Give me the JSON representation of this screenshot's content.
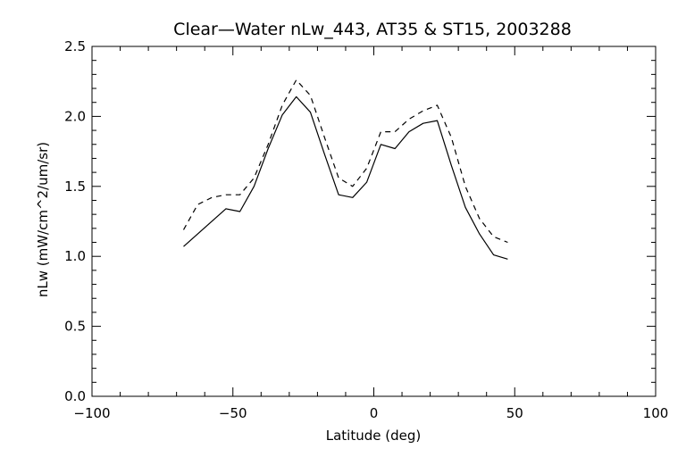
{
  "chart_data": {
    "type": "line",
    "title": "Clear—Water nLw_443, AT35 & ST15, 2003288",
    "xlabel": "Latitude (deg)",
    "ylabel": "nLw (mW/cm^2/um/sr)",
    "xlim": [
      -100,
      100
    ],
    "ylim": [
      0.0,
      2.5
    ],
    "x_ticks": [
      "−100",
      "−50",
      "0",
      "50",
      "100"
    ],
    "x_tick_values": [
      -100,
      -50,
      0,
      50,
      100
    ],
    "y_ticks": [
      "0.0",
      "0.5",
      "1.0",
      "1.5",
      "2.0",
      "2.5"
    ],
    "y_tick_values": [
      0.0,
      0.5,
      1.0,
      1.5,
      2.0,
      2.5
    ],
    "grid": false,
    "series": [
      {
        "line_style": "solid",
        "color": "#000000",
        "x": [
          -67.5,
          -52.5,
          -47.5,
          -42.5,
          -37.5,
          -32.5,
          -27.5,
          -22.5,
          -17.5,
          -12.5,
          -7.5,
          -2.5,
          2.5,
          7.5,
          12.5,
          17.5,
          22.5,
          27.5,
          32.5,
          37.5,
          42.5,
          47.5
        ],
        "values": [
          1.07,
          1.34,
          1.32,
          1.5,
          1.77,
          2.01,
          2.14,
          2.03,
          1.73,
          1.44,
          1.42,
          1.53,
          1.8,
          1.77,
          1.89,
          1.95,
          1.97,
          1.65,
          1.35,
          1.16,
          1.01,
          0.98
        ]
      },
      {
        "line_style": "dashed",
        "color": "#000000",
        "x": [
          -67.5,
          -62.5,
          -57.5,
          -52.5,
          -47.5,
          -42.5,
          -37.5,
          -32.5,
          -27.5,
          -22.5,
          -17.5,
          -12.5,
          -7.5,
          -2.5,
          2.5,
          7.5,
          12.5,
          17.5,
          22.5,
          27.5,
          32.5,
          37.5,
          42.5,
          47.5
        ],
        "values": [
          1.19,
          1.37,
          1.42,
          1.44,
          1.44,
          1.56,
          1.8,
          2.08,
          2.26,
          2.15,
          1.85,
          1.56,
          1.5,
          1.63,
          1.89,
          1.89,
          1.98,
          2.04,
          2.08,
          1.85,
          1.5,
          1.27,
          1.14,
          1.1
        ]
      }
    ]
  }
}
